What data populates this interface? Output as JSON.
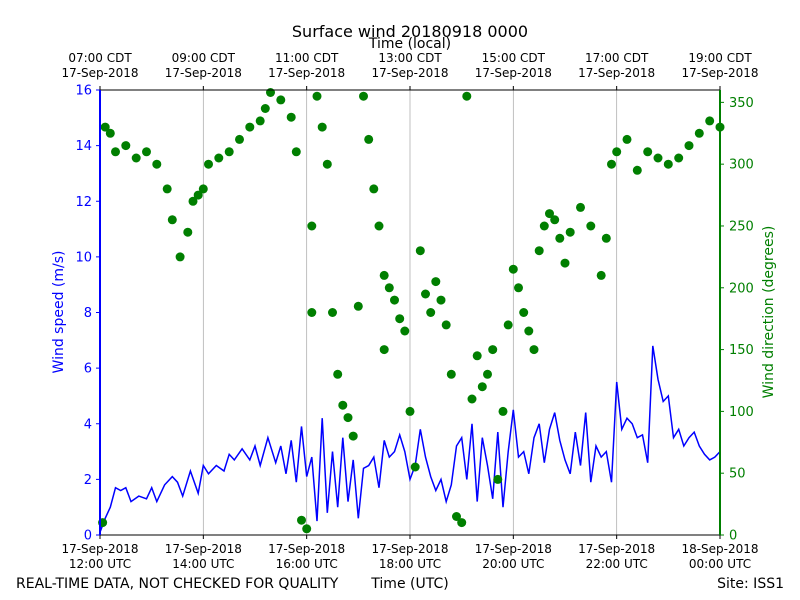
{
  "chart_data": {
    "type": "line+scatter",
    "title": "Surface wind 20180918 0000",
    "top_axis_title": "Time (local)",
    "xlabel": "Time (UTC)",
    "ylabel_left": "Wind speed (m/s)",
    "ylabel_right": "Wind direction (degrees)",
    "footer_left": "REAL-TIME DATA, NOT CHECKED FOR QUALITY",
    "footer_right": "Site: ISS1",
    "x_range_hours": [
      12,
      24
    ],
    "ylim_left": [
      0,
      16
    ],
    "ylim_right": [
      0,
      360
    ],
    "grid": "vertical",
    "left_ticks": [
      0,
      2,
      4,
      6,
      8,
      10,
      12,
      14,
      16
    ],
    "right_ticks": [
      0,
      50,
      100,
      150,
      200,
      250,
      300,
      350
    ],
    "bottom_ticks": [
      {
        "hour": 12,
        "line1": "17-Sep-2018",
        "line2": "12:00 UTC"
      },
      {
        "hour": 14,
        "line1": "17-Sep-2018",
        "line2": "14:00 UTC"
      },
      {
        "hour": 16,
        "line1": "17-Sep-2018",
        "line2": "16:00 UTC"
      },
      {
        "hour": 18,
        "line1": "17-Sep-2018",
        "line2": "18:00 UTC"
      },
      {
        "hour": 20,
        "line1": "17-Sep-2018",
        "line2": "20:00 UTC"
      },
      {
        "hour": 22,
        "line1": "17-Sep-2018",
        "line2": "22:00 UTC"
      },
      {
        "hour": 24,
        "line1": "18-Sep-2018",
        "line2": "00:00 UTC"
      }
    ],
    "top_ticks": [
      {
        "hour": 12,
        "line1": "07:00 CDT",
        "line2": "17-Sep-2018"
      },
      {
        "hour": 14,
        "line1": "09:00 CDT",
        "line2": "17-Sep-2018"
      },
      {
        "hour": 16,
        "line1": "11:00 CDT",
        "line2": "17-Sep-2018"
      },
      {
        "hour": 18,
        "line1": "13:00 CDT",
        "line2": "17-Sep-2018"
      },
      {
        "hour": 20,
        "line1": "15:00 CDT",
        "line2": "17-Sep-2018"
      },
      {
        "hour": 22,
        "line1": "17:00 CDT",
        "line2": "17-Sep-2018"
      },
      {
        "hour": 24,
        "line1": "19:00 CDT",
        "line2": "17-Sep-2018"
      }
    ],
    "series": [
      {
        "name": "Wind speed",
        "axis": "left",
        "style": "line",
        "color": "#0000ff",
        "x_hours": [
          12.0,
          12.1,
          12.2,
          12.3,
          12.4,
          12.5,
          12.6,
          12.75,
          12.9,
          13.0,
          13.1,
          13.25,
          13.4,
          13.5,
          13.6,
          13.75,
          13.9,
          14.0,
          14.1,
          14.25,
          14.4,
          14.5,
          14.6,
          14.75,
          14.9,
          15.0,
          15.1,
          15.25,
          15.4,
          15.5,
          15.6,
          15.7,
          15.8,
          15.9,
          16.0,
          16.1,
          16.2,
          16.3,
          16.4,
          16.5,
          16.6,
          16.7,
          16.8,
          16.9,
          17.0,
          17.1,
          17.2,
          17.3,
          17.4,
          17.5,
          17.6,
          17.7,
          17.8,
          17.9,
          18.0,
          18.1,
          18.2,
          18.3,
          18.4,
          18.5,
          18.6,
          18.7,
          18.8,
          18.9,
          19.0,
          19.1,
          19.2,
          19.3,
          19.4,
          19.5,
          19.6,
          19.7,
          19.8,
          19.9,
          20.0,
          20.1,
          20.2,
          20.3,
          20.4,
          20.5,
          20.6,
          20.7,
          20.8,
          20.9,
          21.0,
          21.1,
          21.2,
          21.3,
          21.4,
          21.5,
          21.6,
          21.7,
          21.8,
          21.9,
          22.0,
          22.1,
          22.2,
          22.3,
          22.4,
          22.5,
          22.6,
          22.7,
          22.8,
          22.9,
          23.0,
          23.1,
          23.2,
          23.3,
          23.4,
          23.5,
          23.6,
          23.7,
          23.8,
          23.9,
          24.0
        ],
        "values": [
          0.1,
          0.6,
          1.0,
          1.7,
          1.6,
          1.7,
          1.2,
          1.4,
          1.3,
          1.7,
          1.2,
          1.8,
          2.1,
          1.9,
          1.4,
          2.3,
          1.5,
          2.5,
          2.2,
          2.5,
          2.3,
          2.9,
          2.7,
          3.1,
          2.7,
          3.2,
          2.5,
          3.5,
          2.6,
          3.2,
          2.2,
          3.4,
          1.9,
          3.9,
          2.1,
          2.8,
          0.5,
          4.2,
          0.8,
          3.0,
          1.0,
          3.5,
          1.2,
          2.7,
          0.6,
          2.4,
          2.5,
          2.8,
          1.7,
          3.4,
          2.8,
          3.0,
          3.6,
          3.0,
          2.0,
          2.5,
          3.8,
          2.8,
          2.1,
          1.6,
          2.0,
          1.2,
          1.8,
          3.2,
          3.5,
          2.0,
          4.0,
          1.2,
          3.5,
          2.5,
          1.3,
          3.7,
          1.0,
          3.0,
          4.5,
          2.8,
          3.0,
          2.2,
          3.5,
          4.0,
          2.6,
          3.8,
          4.4,
          3.4,
          2.7,
          2.2,
          3.7,
          2.5,
          4.4,
          1.9,
          3.2,
          2.8,
          3.0,
          1.9,
          5.5,
          3.8,
          4.2,
          4.0,
          3.5,
          3.6,
          2.6,
          6.8,
          5.6,
          4.8,
          5.0,
          3.5,
          3.8,
          3.2,
          3.5,
          3.7,
          3.2,
          2.9,
          2.7,
          2.8,
          3.0
        ]
      },
      {
        "name": "Wind direction",
        "axis": "right",
        "style": "scatter",
        "color": "#007f00",
        "x_hours": [
          12.05,
          12.1,
          12.2,
          12.3,
          12.5,
          12.7,
          12.9,
          13.1,
          13.3,
          13.4,
          13.55,
          13.7,
          13.8,
          13.9,
          14.0,
          14.1,
          14.3,
          14.5,
          14.7,
          14.9,
          15.1,
          15.2,
          15.3,
          15.5,
          15.7,
          15.8,
          15.9,
          16.0,
          16.1,
          16.1,
          16.2,
          16.3,
          16.4,
          16.5,
          16.6,
          16.7,
          16.8,
          16.9,
          17.0,
          17.1,
          17.2,
          17.3,
          17.4,
          17.5,
          17.5,
          17.6,
          17.7,
          17.8,
          17.9,
          18.0,
          18.1,
          18.2,
          18.3,
          18.4,
          18.5,
          18.6,
          18.7,
          18.8,
          18.9,
          19.0,
          19.1,
          19.2,
          19.3,
          19.4,
          19.5,
          19.6,
          19.7,
          19.8,
          19.9,
          20.0,
          20.1,
          20.2,
          20.3,
          20.4,
          20.5,
          20.6,
          20.7,
          20.8,
          20.9,
          21.0,
          21.1,
          21.3,
          21.5,
          21.7,
          21.8,
          21.9,
          22.0,
          22.2,
          22.4,
          22.6,
          22.8,
          23.0,
          23.2,
          23.4,
          23.6,
          23.8,
          24.0
        ],
        "values": [
          10,
          330,
          325,
          310,
          315,
          305,
          310,
          300,
          280,
          255,
          225,
          245,
          270,
          275,
          280,
          300,
          305,
          310,
          320,
          330,
          335,
          345,
          358,
          352,
          338,
          310,
          12,
          5,
          250,
          180,
          355,
          330,
          300,
          180,
          130,
          105,
          95,
          80,
          185,
          355,
          320,
          280,
          250,
          210,
          150,
          200,
          190,
          175,
          165,
          100,
          55,
          230,
          195,
          180,
          205,
          190,
          170,
          130,
          15,
          10,
          355,
          110,
          145,
          120,
          130,
          150,
          45,
          100,
          170,
          215,
          200,
          180,
          165,
          150,
          230,
          250,
          260,
          255,
          240,
          220,
          245,
          265,
          250,
          210,
          240,
          300,
          310,
          320,
          295,
          310,
          305,
          300,
          305,
          315,
          325,
          335,
          330
        ]
      }
    ]
  }
}
